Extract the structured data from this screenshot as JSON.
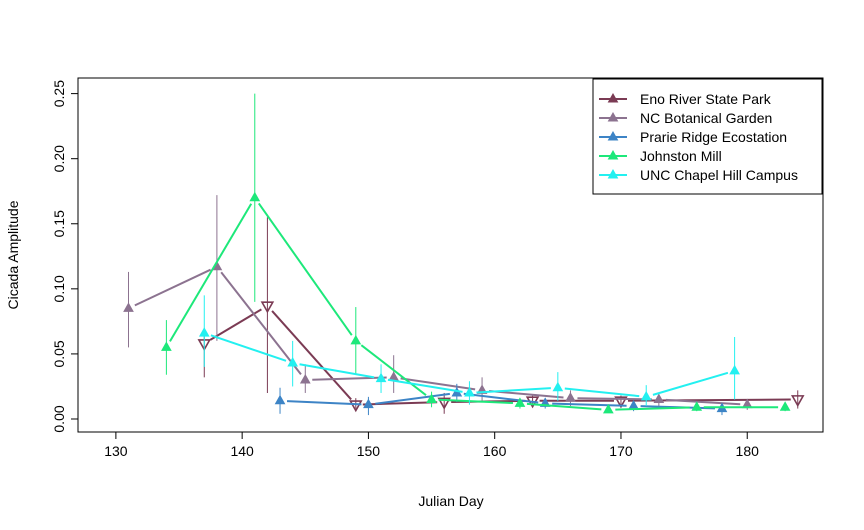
{
  "chart_data": {
    "type": "line",
    "title": "",
    "xlabel": "Julian Day",
    "ylabel": "Cicada Amplitude",
    "xlim": [
      127,
      186
    ],
    "ylim": [
      -0.01,
      0.262
    ],
    "xticks": [
      130,
      140,
      150,
      160,
      170,
      180
    ],
    "yticks": [
      0.0,
      0.05,
      0.1,
      0.15,
      0.2,
      0.25
    ],
    "ytick_labels": [
      "0.00",
      "0.05",
      "0.10",
      "0.15",
      "0.20",
      "0.25"
    ],
    "grid": false,
    "legend_position": "top-right",
    "series": [
      {
        "name": "Eno River State Park",
        "color": "#7B3B54",
        "x": [
          137,
          142,
          149,
          156,
          163,
          170,
          184
        ],
        "y": [
          0.058,
          0.087,
          0.011,
          0.013,
          0.014,
          0.014,
          0.015
        ],
        "err_low": [
          0.032,
          0.02,
          0.008,
          0.004,
          0.011,
          0.011,
          0.008
        ],
        "err_high": [
          0.068,
          0.155,
          0.016,
          0.02,
          0.018,
          0.018,
          0.022
        ],
        "hollow": [
          true,
          true,
          true,
          true,
          true,
          true,
          true
        ]
      },
      {
        "name": "NC Botanical Garden",
        "color": "#8C7390",
        "x": [
          131,
          138,
          145,
          152,
          159,
          166,
          173,
          180
        ],
        "y": [
          0.085,
          0.117,
          0.03,
          0.032,
          0.022,
          0.016,
          0.015,
          0.011
        ],
        "err_low": [
          0.055,
          0.06,
          0.02,
          0.02,
          0.013,
          0.01,
          0.01,
          0.007
        ],
        "err_high": [
          0.113,
          0.172,
          0.042,
          0.049,
          0.032,
          0.022,
          0.02,
          0.015
        ],
        "hollow": [
          false,
          false,
          false,
          false,
          false,
          false,
          false,
          false
        ]
      },
      {
        "name": "Prarie Ridge Ecostation",
        "color": "#3D84C6",
        "x": [
          143,
          150,
          157,
          164,
          171,
          178
        ],
        "y": [
          0.014,
          0.011,
          0.02,
          0.012,
          0.01,
          0.008
        ],
        "err_low": [
          0.004,
          0.003,
          0.013,
          0.008,
          0.006,
          0.003
        ],
        "err_high": [
          0.024,
          0.017,
          0.027,
          0.016,
          0.014,
          0.012
        ],
        "hollow": [
          false,
          false,
          false,
          false,
          false,
          false
        ]
      },
      {
        "name": "Johnston Mill",
        "color": "#1DE87A",
        "x": [
          134,
          141,
          149,
          155,
          162,
          169,
          176,
          183
        ],
        "y": [
          0.055,
          0.17,
          0.06,
          0.015,
          0.012,
          0.007,
          0.009,
          0.009
        ],
        "err_low": [
          0.034,
          0.09,
          0.035,
          0.009,
          0.008,
          0.005,
          0.006,
          0.006
        ],
        "err_high": [
          0.076,
          0.25,
          0.086,
          0.021,
          0.016,
          0.009,
          0.012,
          0.012
        ],
        "hollow": [
          false,
          false,
          false,
          false,
          false,
          false,
          false,
          false
        ]
      },
      {
        "name": "UNC Chapel Hill Campus",
        "color": "#23F0F0",
        "x": [
          137,
          144,
          151,
          158,
          165,
          172,
          179
        ],
        "y": [
          0.066,
          0.043,
          0.031,
          0.02,
          0.024,
          0.017,
          0.037
        ],
        "err_low": [
          0.04,
          0.025,
          0.02,
          0.011,
          0.014,
          0.01,
          0.015
        ],
        "err_high": [
          0.095,
          0.06,
          0.042,
          0.029,
          0.036,
          0.026,
          0.063
        ],
        "hollow": [
          false,
          false,
          false,
          false,
          false,
          false,
          false
        ]
      }
    ]
  }
}
